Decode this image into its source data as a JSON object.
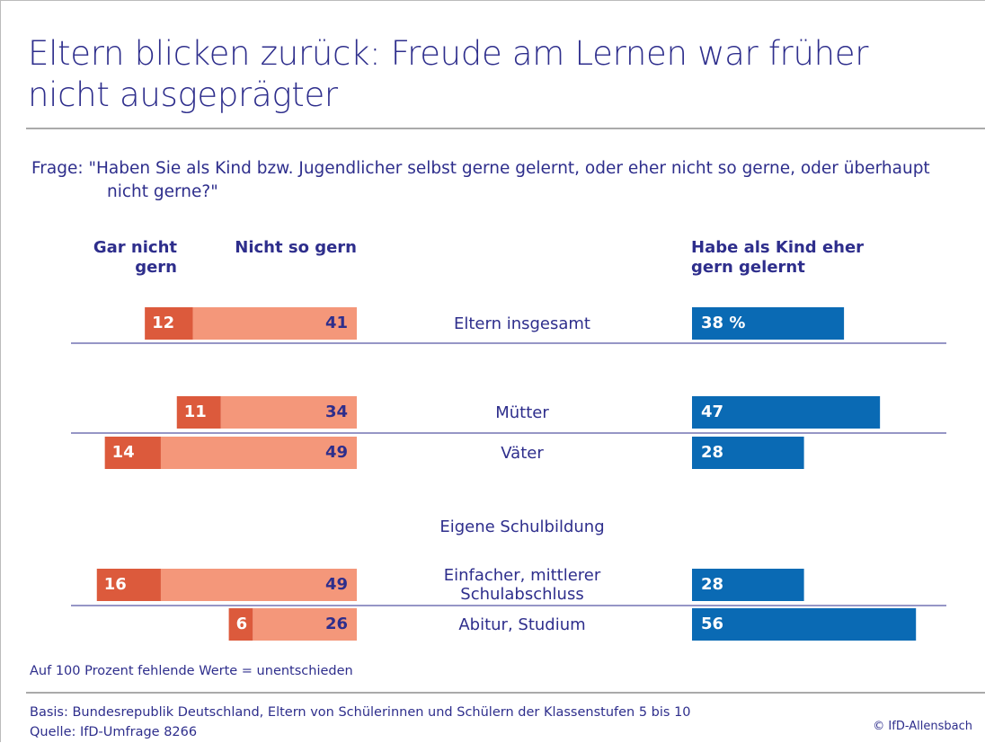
{
  "chart_data": {
    "type": "diverging-bar",
    "title": "Eltern blicken zurück: Freude am Lernen war früher nicht ausgeprägter",
    "subtitle": "Frage: \"Haben Sie als Kind bzw. Jugendlicher selbst gerne gelernt, oder eher nicht so gerne, oder überhaupt nicht gerne?\"",
    "group_label": "Eigene Schulbildung",
    "categories": [
      "Eltern insgesamt",
      "Mütter",
      "Väter",
      "Einfacher, mittlerer Schulabschluss",
      "Abitur, Studium"
    ],
    "series": [
      {
        "name": "Gar nicht gern",
        "color": "#dc5a3c",
        "values": [
          12,
          11,
          14,
          16,
          6
        ]
      },
      {
        "name": "Nicht so gern",
        "color": "#f4977a",
        "values": [
          41,
          34,
          49,
          49,
          26
        ]
      },
      {
        "name": "Habe als Kind eher gern gelernt",
        "color": "#0a6ab4",
        "values": [
          38,
          47,
          28,
          28,
          56
        ],
        "value_labels": [
          "38 %",
          "47",
          "28",
          "28",
          "56"
        ]
      }
    ],
    "note": "Auf 100 Prozent fehlende Werte = unentschieden",
    "basis": "Basis: Bundesrepublik Deutschland, Eltern von Schülerinnen und Schülern der Klassenstufen 5 bis 10",
    "source": "Quelle: IfD-Umfrage 8266",
    "copyright": "© IfD-Allensbach"
  }
}
